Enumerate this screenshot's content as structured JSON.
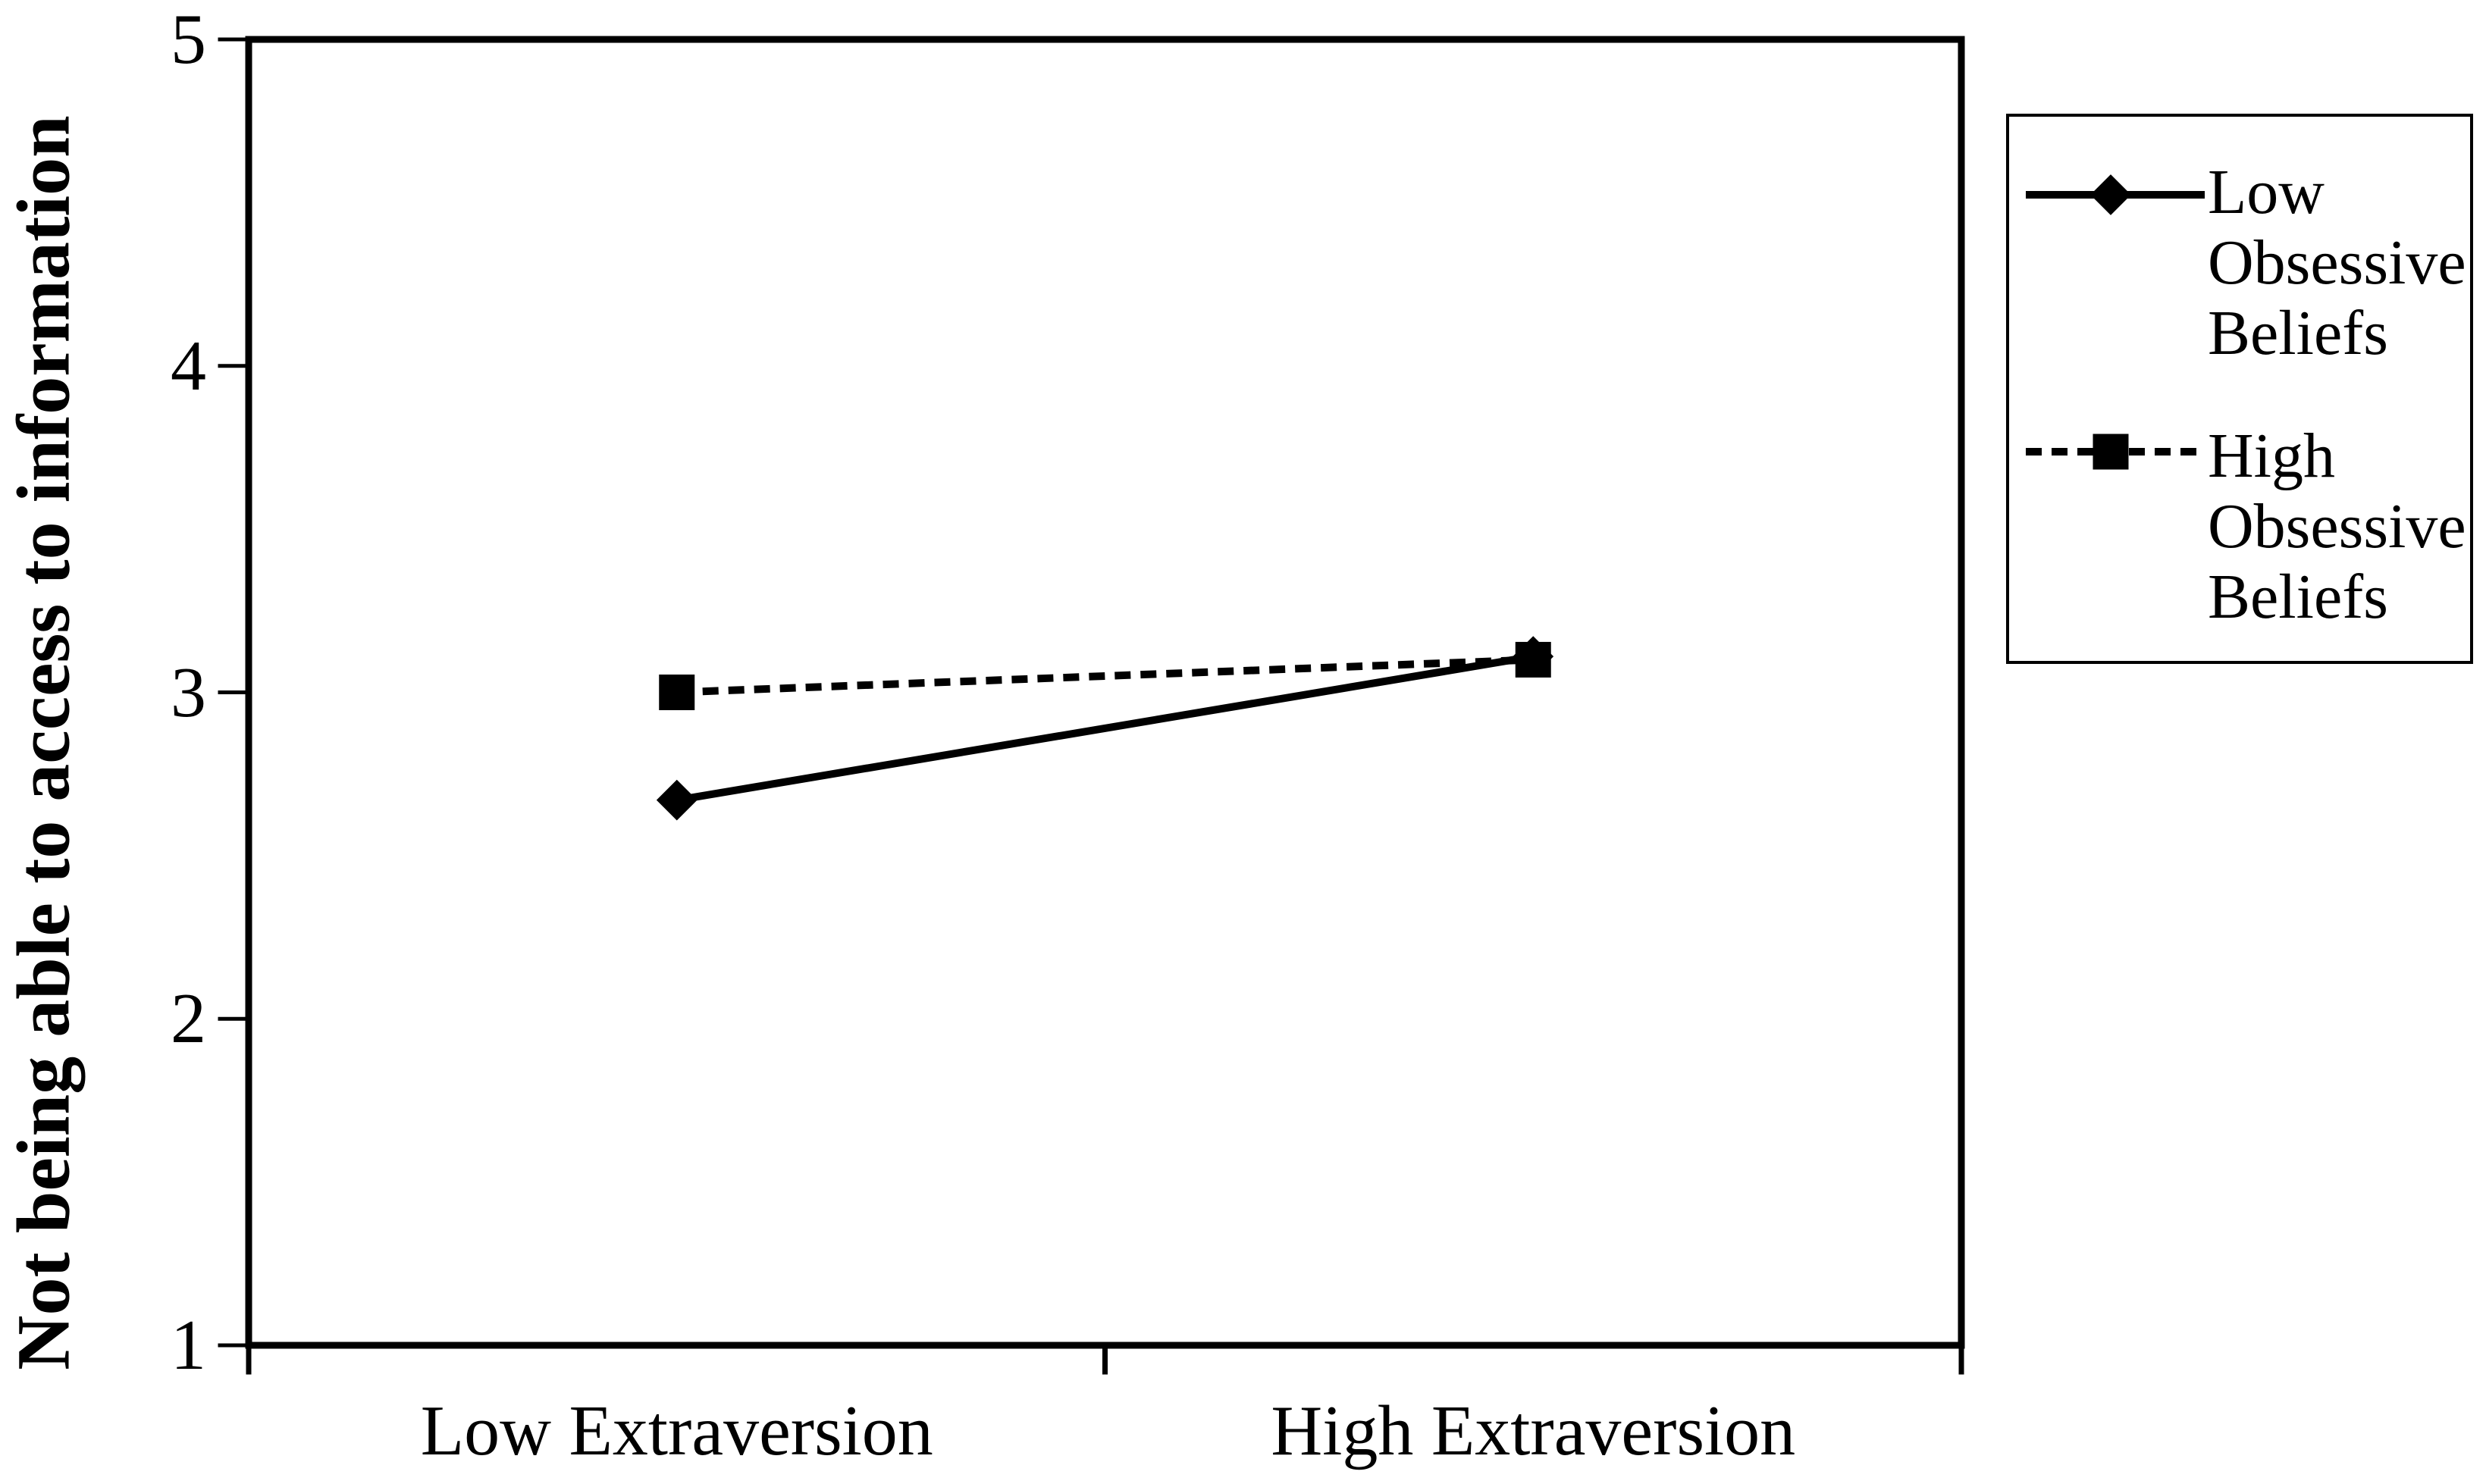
{
  "figure": {
    "background_color": "#ffffff",
    "ink_color": "#000000"
  },
  "y_axis": {
    "label": "Not being able to access to information",
    "ticks": [
      "5",
      "4",
      "3",
      "2",
      "1"
    ]
  },
  "x_axis": {
    "categories": [
      "Low Extraversion",
      "High Extraversion"
    ]
  },
  "legend": {
    "items": [
      {
        "label": "Low Obsessive Beliefs"
      },
      {
        "label": "High Obsessive Beliefs"
      }
    ]
  },
  "chart_data": {
    "type": "line",
    "categories": [
      "Low Extraversion",
      "High Extraversion"
    ],
    "series": [
      {
        "name": "Low Obsessive Beliefs",
        "values": [
          2.67,
          3.11
        ],
        "line_style": "solid",
        "marker": "diamond",
        "color": "#000000"
      },
      {
        "name": "High Obsessive Beliefs",
        "values": [
          3.0,
          3.1
        ],
        "line_style": "dashed",
        "marker": "square",
        "color": "#000000"
      }
    ],
    "title": "",
    "xlabel": "",
    "ylabel": "Not being able to access to information",
    "ylim": [
      1,
      5
    ],
    "yticks": [
      5,
      4,
      3,
      2,
      1
    ],
    "grid": false,
    "legend_position": "right",
    "plot_border": true
  }
}
